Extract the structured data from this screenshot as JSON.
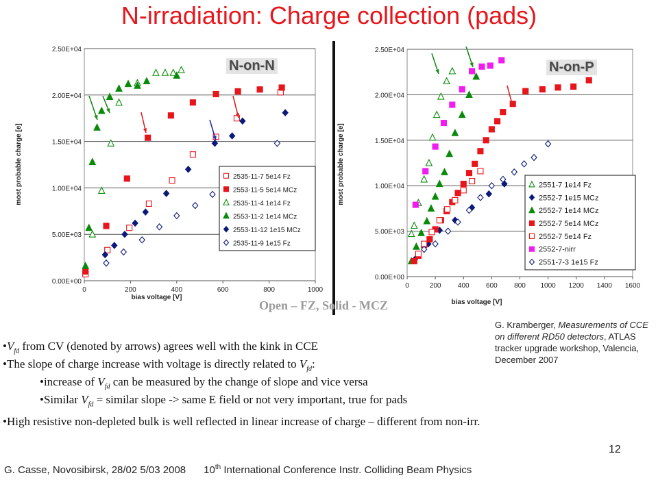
{
  "slide": {
    "title": "N-irradiation: Charge collection (pads)",
    "open_solid_note": "Open – FZ, Solid - MCZ",
    "reference": "G. Kramberger, Measurements of CCE on different RD50 detectors, ATLAS tracker upgrade workshop, Valencia, December 2007",
    "reference_parts": {
      "pre": "G. Kramberger, ",
      "italic": "Measurements of CCE on different RD50 detectors",
      "post": ", ATLAS tracker upgrade workshop, Valencia, December 2007"
    },
    "bullets": [
      {
        "pre": "",
        "var": "V",
        "sub": "fd",
        "post": " from CV (denoted by arrows) agrees well with the kink in CCE"
      },
      {
        "pre": "The slope of charge increase with voltage is directly related to ",
        "var": "V",
        "sub": "fd",
        "post": ":"
      },
      {
        "pre": "increase of ",
        "var": "V",
        "sub": "fd",
        "post": " can be measured by the change of slope and vice versa"
      },
      {
        "pre": "Similar ",
        "var": "V",
        "sub": "fd",
        "post": " = similar slope -> same E field or not very important, true for pads"
      },
      {
        "pre": "High resistive non-depleted bulk is well reflected in linear increase of charge – different from non-irr.",
        "var": "",
        "sub": "",
        "post": ""
      }
    ],
    "footer": {
      "left": "G. Casse, Novosibirsk, 28/02 5/03 2008",
      "mid_pre": "10",
      "mid_sup": "th",
      "mid_post": " International Conference Instr. Colliding Beam Physics"
    },
    "page_number": "12"
  },
  "colors": {
    "title": "#e8151b",
    "red": "#e8151b",
    "green": "#0a8a0a",
    "navy": "#0a1a7a",
    "magenta": "#f01cf0",
    "arrow_blue": "#2233aa",
    "arrow_green": "#1a8a1a",
    "arrow_red": "#e02020"
  },
  "chart_data": [
    {
      "type": "scatter",
      "tag": "N-on-N",
      "xlabel": "bias voltage [V]",
      "ylabel": "most probable charge [e]",
      "xlim": [
        0,
        1000
      ],
      "ylim": [
        0,
        25000
      ],
      "xticks": [
        "0",
        "200",
        "400",
        "600",
        "800",
        "1000"
      ],
      "yticks": [
        "0.00E+00",
        "5.00E+03",
        "1.00E+04",
        "1.50E+04",
        "2.00E+04",
        "2.50E+04"
      ],
      "grid": true,
      "legend_position": "bottom-right",
      "series": [
        {
          "name": "2535-11-7 5e14 Fz",
          "marker": "square",
          "filled": false,
          "color": "red",
          "points": [
            [
              5,
              700
            ],
            [
              100,
              3300
            ],
            [
              195,
              5700
            ],
            [
              280,
              8300
            ],
            [
              380,
              10800
            ],
            [
              470,
              13600
            ],
            [
              570,
              15500
            ],
            [
              660,
              17500
            ],
            [
              850,
              20300
            ]
          ]
        },
        {
          "name": "2553-11-5 5e14 MCz",
          "marker": "square",
          "filled": true,
          "color": "red",
          "points": [
            [
              5,
              1000
            ],
            [
              95,
              5900
            ],
            [
              185,
              11000
            ],
            [
              275,
              15400
            ],
            [
              375,
              17800
            ],
            [
              470,
              19200
            ],
            [
              570,
              20100
            ],
            [
              665,
              20400
            ],
            [
              760,
              20600
            ],
            [
              855,
              20800
            ]
          ]
        },
        {
          "name": "2535-11-4 1e14 Fz",
          "marker": "triangle",
          "filled": false,
          "color": "green",
          "points": [
            [
              35,
              5000
            ],
            [
              75,
              9700
            ],
            [
              115,
              14800
            ],
            [
              150,
              19200
            ],
            [
              230,
              21300
            ],
            [
              310,
              22400
            ],
            [
              350,
              22400
            ],
            [
              385,
              22400
            ],
            [
              420,
              22700
            ]
          ]
        },
        {
          "name": "2553-11-2 1e14 MCz",
          "marker": "triangle",
          "filled": true,
          "color": "green",
          "points": [
            [
              5,
              1600
            ],
            [
              20,
              5700
            ],
            [
              35,
              12800
            ],
            [
              55,
              16500
            ],
            [
              75,
              18300
            ],
            [
              110,
              19800
            ],
            [
              150,
              20700
            ],
            [
              190,
              21200
            ],
            [
              230,
              21000
            ],
            [
              270,
              21500
            ],
            [
              400,
              22100
            ]
          ]
        },
        {
          "name": "2553-11-12 1e15 MCz",
          "marker": "diamond",
          "filled": true,
          "color": "navy",
          "points": [
            [
              90,
              2800
            ],
            [
              130,
              3800
            ],
            [
              175,
              5000
            ],
            [
              220,
              6200
            ],
            [
              265,
              7400
            ],
            [
              355,
              9400
            ],
            [
              450,
              12000
            ],
            [
              565,
              14800
            ],
            [
              640,
              15600
            ],
            [
              685,
              17200
            ],
            [
              870,
              18100
            ]
          ]
        },
        {
          "name": "2535-11-9 1e15 Fz",
          "marker": "diamond",
          "filled": false,
          "color": "navy",
          "points": [
            [
              95,
              1900
            ],
            [
              170,
              3100
            ],
            [
              250,
              4400
            ],
            [
              325,
              5800
            ],
            [
              400,
              7000
            ],
            [
              480,
              8100
            ],
            [
              555,
              9300
            ],
            [
              835,
              14800
            ]
          ]
        }
      ]
    },
    {
      "type": "scatter",
      "tag": "N-on-P",
      "xlabel": "bias voltage [V]",
      "ylabel": "most probable charge [e]",
      "xlim": [
        0,
        1600
      ],
      "ylim": [
        0,
        25000
      ],
      "xticks": [
        "0",
        "200",
        "400",
        "600",
        "800",
        "1000",
        "1200",
        "1400",
        "1600"
      ],
      "yticks": [
        "0.00E+00",
        "5.00E+03",
        "1.00E+04",
        "1.50E+04",
        "2.00E+04",
        "2.50E+04"
      ],
      "grid": true,
      "legend_position": "bottom-right",
      "series": [
        {
          "name": "2551-7 1e14 Fz",
          "marker": "triangle",
          "filled": false,
          "color": "green",
          "points": [
            [
              30,
              4700
            ],
            [
              50,
              5600
            ],
            [
              80,
              8100
            ],
            [
              120,
              10700
            ],
            [
              155,
              12500
            ],
            [
              180,
              15300
            ],
            [
              210,
              17800
            ],
            [
              240,
              19800
            ],
            [
              280,
              21500
            ],
            [
              320,
              22600
            ]
          ]
        },
        {
          "name": "2552-7 1e15 MCz",
          "marker": "diamond",
          "filled": true,
          "color": "navy",
          "points": [
            [
              55,
              1900
            ],
            [
              150,
              3600
            ],
            [
              230,
              5100
            ],
            [
              340,
              6200
            ],
            [
              460,
              7600
            ],
            [
              580,
              9100
            ],
            [
              690,
              10200
            ]
          ]
        },
        {
          "name": "2552-7 1e14 MCz",
          "marker": "triangle",
          "filled": true,
          "color": "green",
          "points": [
            [
              30,
              1700
            ],
            [
              65,
              3300
            ],
            [
              100,
              4800
            ],
            [
              140,
              6100
            ],
            [
              170,
              7500
            ],
            [
              200,
              8800
            ],
            [
              230,
              10200
            ],
            [
              265,
              11500
            ],
            [
              300,
              13500
            ],
            [
              340,
              15800
            ],
            [
              390,
              17800
            ],
            [
              440,
              20000
            ],
            [
              490,
              22000
            ]
          ]
        },
        {
          "name": "2552-7 5e14 MCz",
          "marker": "square",
          "filled": true,
          "color": "red",
          "points": [
            [
              50,
              1700
            ],
            [
              80,
              2300
            ],
            [
              120,
              3500
            ],
            [
              160,
              4100
            ],
            [
              200,
              5200
            ],
            [
              240,
              6200
            ],
            [
              280,
              7200
            ],
            [
              320,
              8200
            ],
            [
              360,
              9200
            ],
            [
              400,
              10200
            ],
            [
              440,
              11400
            ],
            [
              480,
              12400
            ],
            [
              520,
              13800
            ],
            [
              560,
              15000
            ],
            [
              600,
              16200
            ],
            [
              640,
              17100
            ],
            [
              680,
              18100
            ],
            [
              750,
              19000
            ],
            [
              840,
              20400
            ],
            [
              960,
              20600
            ],
            [
              1070,
              20800
            ],
            [
              1180,
              20900
            ],
            [
              1290,
              21600
            ]
          ]
        },
        {
          "name": "2552-7 5e14 Fz",
          "marker": "square",
          "filled": false,
          "color": "red",
          "points": [
            [
              80,
              2500
            ],
            [
              120,
              3600
            ],
            [
              175,
              4900
            ],
            [
              230,
              6200
            ],
            [
              285,
              7400
            ],
            [
              340,
              8400
            ],
            [
              400,
              9500
            ],
            [
              460,
              10500
            ],
            [
              520,
              11600
            ]
          ]
        },
        {
          "name": "2552-7-nirr",
          "marker": "square",
          "filled": true,
          "color": "magenta",
          "points": [
            [
              60,
              7900
            ],
            [
              130,
              11600
            ],
            [
              200,
              14300
            ],
            [
              260,
              16900
            ],
            [
              320,
              18900
            ],
            [
              390,
              20600
            ],
            [
              460,
              22600
            ],
            [
              530,
              23100
            ],
            [
              590,
              23200
            ],
            [
              670,
              23800
            ]
          ]
        },
        {
          "name": "2551-7-3 1e15 Fz",
          "marker": "diamond",
          "filled": false,
          "color": "navy",
          "points": [
            [
              120,
              3000
            ],
            [
              200,
              3600
            ],
            [
              290,
              5000
            ],
            [
              360,
              6000
            ],
            [
              440,
              7300
            ],
            [
              520,
              8700
            ],
            [
              600,
              10000
            ],
            [
              680,
              10700
            ],
            [
              760,
              11500
            ],
            [
              830,
              12400
            ],
            [
              900,
              13100
            ],
            [
              1000,
              14600
            ]
          ]
        }
      ]
    }
  ]
}
